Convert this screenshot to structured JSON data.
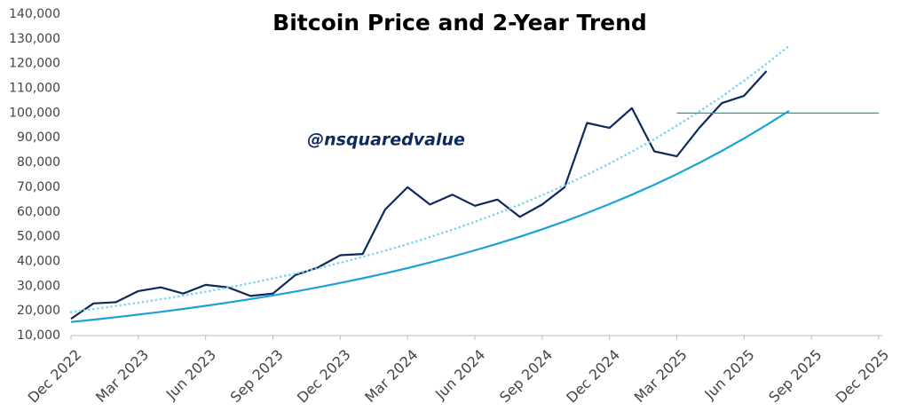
{
  "chart_data": {
    "type": "line",
    "title": "Bitcoin Price and 2-Year Trend",
    "annotation": "@nsquaredvalue",
    "x": [
      "2022-12",
      "2023-01",
      "2023-02",
      "2023-03",
      "2023-04",
      "2023-05",
      "2023-06",
      "2023-07",
      "2023-08",
      "2023-09",
      "2023-10",
      "2023-11",
      "2023-12",
      "2024-01",
      "2024-02",
      "2024-03",
      "2024-04",
      "2024-05",
      "2024-06",
      "2024-07",
      "2024-08",
      "2024-09",
      "2024-10",
      "2024-11",
      "2024-12",
      "2025-01",
      "2025-02",
      "2025-03",
      "2025-04",
      "2025-05",
      "2025-06",
      "2025-07",
      "2025-08",
      "2025-09",
      "2025-10",
      "2025-11",
      "2025-12"
    ],
    "series": [
      {
        "color": "#0d2a5c",
        "style": "solid",
        "width": 2.2,
        "values": [
          16800,
          23000,
          23500,
          28000,
          29500,
          27000,
          30500,
          29500,
          26000,
          27000,
          34500,
          37500,
          42500,
          43000,
          61000,
          70000,
          63000,
          67000,
          62500,
          65000,
          58000,
          63000,
          70000,
          96000,
          94000,
          102000,
          84500,
          82500,
          94000,
          104000,
          107000,
          117000,
          null,
          null,
          null,
          null,
          null
        ]
      },
      {
        "color": "#1aa3d4",
        "style": "solid",
        "width": 2.2,
        "values": [
          15500,
          16430,
          17420,
          18470,
          19590,
          20770,
          22020,
          23350,
          24760,
          26250,
          27830,
          29510,
          31290,
          33180,
          35180,
          37300,
          39550,
          41930,
          44460,
          47140,
          49980,
          53000,
          56190,
          59580,
          63170,
          66980,
          71020,
          75300,
          79840,
          84650,
          89760,
          95170,
          100910,
          null,
          null,
          null,
          null
        ]
      },
      {
        "color": "#7fd4f0",
        "style": "dotted",
        "width": 2.6,
        "values": [
          19530,
          20700,
          21950,
          23270,
          24680,
          26170,
          27750,
          29420,
          31200,
          33080,
          35070,
          37180,
          39430,
          41810,
          44330,
          47000,
          49830,
          52830,
          56020,
          59400,
          62970,
          66780,
          70800,
          75070,
          79590,
          84390,
          89490,
          94880,
          100600,
          106660,
          113100,
          119910,
          127150,
          null,
          null,
          null,
          null
        ]
      },
      {
        "color": "#1aa3a3",
        "style": "solid",
        "width": 1.2,
        "values": [
          null,
          null,
          null,
          null,
          null,
          null,
          null,
          null,
          null,
          null,
          null,
          null,
          null,
          null,
          null,
          null,
          null,
          null,
          null,
          null,
          null,
          null,
          null,
          null,
          null,
          null,
          null,
          100000,
          100000,
          100000,
          100000,
          100000,
          100000,
          100000,
          100000,
          100000,
          100000
        ]
      }
    ],
    "xlim": [
      "2022-12",
      "2025-12"
    ],
    "xticks": [
      {
        "value": "2022-12",
        "label": "Dec 2022"
      },
      {
        "value": "2023-03",
        "label": "Mar 2023"
      },
      {
        "value": "2023-06",
        "label": "Jun 2023"
      },
      {
        "value": "2023-09",
        "label": "Sep 2023"
      },
      {
        "value": "2023-12",
        "label": "Dec 2023"
      },
      {
        "value": "2024-03",
        "label": "Mar 2024"
      },
      {
        "value": "2024-06",
        "label": "Jun 2024"
      },
      {
        "value": "2024-09",
        "label": "Sep 2024"
      },
      {
        "value": "2024-12",
        "label": "Dec 2024"
      },
      {
        "value": "2025-03",
        "label": "Mar 2025"
      },
      {
        "value": "2025-06",
        "label": "Jun 2025"
      },
      {
        "value": "2025-09",
        "label": "Sep 2025"
      },
      {
        "value": "2025-12",
        "label": "Dec 2025"
      }
    ],
    "ylim": [
      10000,
      140000
    ],
    "yticks": [
      {
        "value": 10000,
        "label": "10,000"
      },
      {
        "value": 20000,
        "label": "20,000"
      },
      {
        "value": 30000,
        "label": "30,000"
      },
      {
        "value": 40000,
        "label": "40,000"
      },
      {
        "value": 50000,
        "label": "50,000"
      },
      {
        "value": 60000,
        "label": "60,000"
      },
      {
        "value": 70000,
        "label": "70,000"
      },
      {
        "value": 80000,
        "label": "80,000"
      },
      {
        "value": 90000,
        "label": "90,000"
      },
      {
        "value": 100000,
        "label": "100,000"
      },
      {
        "value": 110000,
        "label": "110,000"
      },
      {
        "value": 120000,
        "label": "120,000"
      },
      {
        "value": 130000,
        "label": "130,000"
      },
      {
        "value": 140000,
        "label": "140,000"
      }
    ],
    "grid": false
  }
}
